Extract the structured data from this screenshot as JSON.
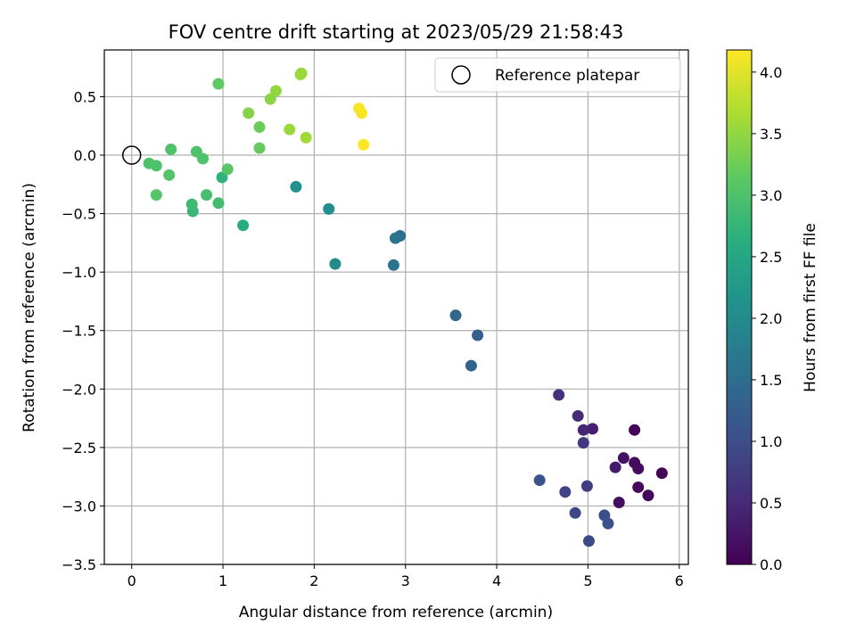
{
  "chart_data": {
    "type": "scatter",
    "title": "FOV centre drift starting at 2023/05/29 21:58:43",
    "xlabel": "Angular distance from reference (arcmin)",
    "ylabel": "Rotation from reference (arcmin)",
    "xlim": [
      -0.3,
      6.1
    ],
    "ylim": [
      -3.5,
      0.9
    ],
    "xticks": [
      0,
      1,
      2,
      3,
      4,
      5,
      6
    ],
    "xtick_labels": [
      "0",
      "1",
      "2",
      "3",
      "4",
      "5",
      "6"
    ],
    "yticks": [
      -3.5,
      -3.0,
      -2.5,
      -2.0,
      -1.5,
      -1.0,
      -0.5,
      0.0,
      0.5
    ],
    "ytick_labels": [
      "−3.5",
      "−3.0",
      "−2.5",
      "−2.0",
      "−1.5",
      "−1.0",
      "−0.5",
      "0.0",
      "0.5"
    ],
    "grid": true,
    "legend": {
      "placement": "top-right",
      "label": "Reference platepar"
    },
    "reference_point": {
      "x": 0.0,
      "y": 0.0
    },
    "colorbar": {
      "label": "Hours from first FF file",
      "colormap": "viridis",
      "range": [
        0.0,
        4.18
      ],
      "ticks": [
        0.0,
        0.5,
        1.0,
        1.5,
        2.0,
        2.5,
        3.0,
        3.5,
        4.0
      ],
      "tick_labels": [
        "0.0",
        "0.5",
        "1.0",
        "1.5",
        "2.0",
        "2.5",
        "3.0",
        "3.5",
        "4.0"
      ]
    },
    "points": [
      {
        "x": 5.51,
        "y": -2.35,
        "c": 0.03
      },
      {
        "x": 5.81,
        "y": -2.72,
        "c": 0.05
      },
      {
        "x": 5.66,
        "y": -2.91,
        "c": 0.08
      },
      {
        "x": 5.55,
        "y": -2.84,
        "c": 0.1
      },
      {
        "x": 5.51,
        "y": -2.63,
        "c": 0.13
      },
      {
        "x": 5.55,
        "y": -2.68,
        "c": 0.15
      },
      {
        "x": 5.34,
        "y": -2.97,
        "c": 0.17
      },
      {
        "x": 5.39,
        "y": -2.59,
        "c": 0.22
      },
      {
        "x": 5.3,
        "y": -2.67,
        "c": 0.3
      },
      {
        "x": 5.05,
        "y": -2.34,
        "c": 0.38
      },
      {
        "x": 4.95,
        "y": -2.35,
        "c": 0.45
      },
      {
        "x": 4.89,
        "y": -2.23,
        "c": 0.52
      },
      {
        "x": 4.68,
        "y": -2.05,
        "c": 0.6
      },
      {
        "x": 4.95,
        "y": -2.46,
        "c": 0.68
      },
      {
        "x": 4.99,
        "y": -2.83,
        "c": 0.78
      },
      {
        "x": 4.75,
        "y": -2.88,
        "c": 0.85
      },
      {
        "x": 4.86,
        "y": -3.06,
        "c": 0.9
      },
      {
        "x": 5.01,
        "y": -3.3,
        "c": 0.95
      },
      {
        "x": 5.18,
        "y": -3.08,
        "c": 1.0
      },
      {
        "x": 5.22,
        "y": -3.15,
        "c": 1.05
      },
      {
        "x": 4.47,
        "y": -2.78,
        "c": 1.1
      },
      {
        "x": 3.79,
        "y": -1.54,
        "c": 1.3
      },
      {
        "x": 3.72,
        "y": -1.8,
        "c": 1.35
      },
      {
        "x": 3.55,
        "y": -1.37,
        "c": 1.4
      },
      {
        "x": 2.94,
        "y": -0.69,
        "c": 1.55
      },
      {
        "x": 2.89,
        "y": -0.71,
        "c": 1.6
      },
      {
        "x": 2.87,
        "y": -0.94,
        "c": 1.62
      },
      {
        "x": 2.23,
        "y": -0.93,
        "c": 2.0
      },
      {
        "x": 2.16,
        "y": -0.46,
        "c": 2.05
      },
      {
        "x": 1.8,
        "y": -0.27,
        "c": 2.1
      },
      {
        "x": 1.22,
        "y": -0.6,
        "c": 2.6
      },
      {
        "x": 0.99,
        "y": -0.19,
        "c": 2.7
      },
      {
        "x": 0.67,
        "y": -0.48,
        "c": 2.8
      },
      {
        "x": 0.66,
        "y": -0.42,
        "c": 2.85
      },
      {
        "x": 0.95,
        "y": -0.41,
        "c": 2.9
      },
      {
        "x": 0.82,
        "y": -0.34,
        "c": 2.95
      },
      {
        "x": 0.78,
        "y": -0.03,
        "c": 3.0
      },
      {
        "x": 0.71,
        "y": 0.03,
        "c": 3.0
      },
      {
        "x": 0.43,
        "y": 0.05,
        "c": 3.0
      },
      {
        "x": 0.19,
        "y": -0.07,
        "c": 3.0
      },
      {
        "x": 0.27,
        "y": -0.09,
        "c": 3.0
      },
      {
        "x": 0.41,
        "y": -0.17,
        "c": 3.05
      },
      {
        "x": 0.27,
        "y": -0.34,
        "c": 3.05
      },
      {
        "x": 1.05,
        "y": -0.12,
        "c": 3.1
      },
      {
        "x": 0.95,
        "y": 0.61,
        "c": 3.15
      },
      {
        "x": 1.4,
        "y": 0.06,
        "c": 3.2
      },
      {
        "x": 1.4,
        "y": 0.24,
        "c": 3.25
      },
      {
        "x": 1.28,
        "y": 0.36,
        "c": 3.4
      },
      {
        "x": 1.52,
        "y": 0.48,
        "c": 3.45
      },
      {
        "x": 1.58,
        "y": 0.55,
        "c": 3.5
      },
      {
        "x": 1.73,
        "y": 0.22,
        "c": 3.55
      },
      {
        "x": 1.85,
        "y": 0.69,
        "c": 3.55
      },
      {
        "x": 1.86,
        "y": 0.7,
        "c": 3.55
      },
      {
        "x": 1.91,
        "y": 0.15,
        "c": 3.6
      },
      {
        "x": 2.49,
        "y": 0.4,
        "c": 4.15
      },
      {
        "x": 2.52,
        "y": 0.36,
        "c": 4.15
      },
      {
        "x": 2.54,
        "y": 0.09,
        "c": 4.18
      }
    ]
  }
}
